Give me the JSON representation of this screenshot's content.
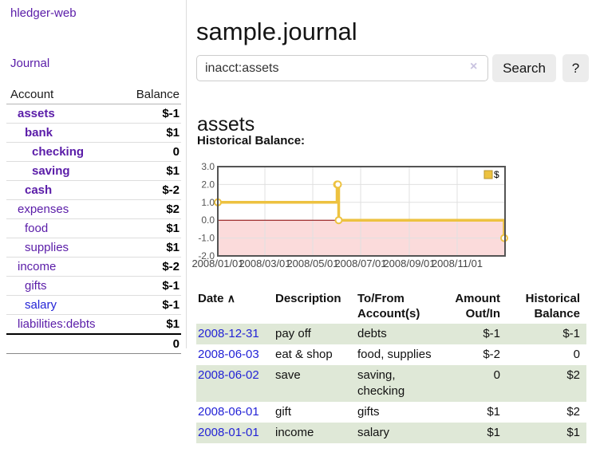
{
  "app": {
    "title": "hledger-web"
  },
  "sidebar": {
    "journal_link": "Journal",
    "table": {
      "account_header": "Account",
      "balance_header": "Balance",
      "rows": [
        {
          "label": "assets",
          "balance": "$-1",
          "depth": 1,
          "strong": true,
          "balance_class": "neg",
          "link_class": ""
        },
        {
          "label": "bank",
          "balance": "$1",
          "depth": 2,
          "strong": true,
          "balance_class": "",
          "link_class": ""
        },
        {
          "label": "checking",
          "balance": "0",
          "depth": 3,
          "strong": true,
          "balance_class": "",
          "link_class": ""
        },
        {
          "label": "saving",
          "balance": "$1",
          "depth": 3,
          "strong": true,
          "balance_class": "",
          "link_class": ""
        },
        {
          "label": "cash",
          "balance": "$-2",
          "depth": 2,
          "strong": true,
          "balance_class": "neg",
          "link_class": ""
        },
        {
          "label": "expenses",
          "balance": "$2",
          "depth": 1,
          "strong": false,
          "balance_class": "",
          "link_class": ""
        },
        {
          "label": "food",
          "balance": "$1",
          "depth": 2,
          "strong": false,
          "balance_class": "",
          "link_class": ""
        },
        {
          "label": "supplies",
          "balance": "$1",
          "depth": 2,
          "strong": false,
          "balance_class": "",
          "link_class": ""
        },
        {
          "label": "income",
          "balance": "$-2",
          "depth": 1,
          "strong": false,
          "balance_class": "negsoft",
          "link_class": ""
        },
        {
          "label": "gifts",
          "balance": "$-1",
          "depth": 2,
          "strong": false,
          "balance_class": "negsoft",
          "link_class": ""
        },
        {
          "label": "salary",
          "balance": "$-1",
          "depth": 2,
          "strong": false,
          "balance_class": "negsoft",
          "link_class": "blue"
        },
        {
          "label": "liabilities:debts",
          "balance": "$1",
          "depth": 1,
          "strong": false,
          "balance_class": "",
          "link_class": ""
        }
      ],
      "total": "0"
    }
  },
  "main": {
    "title": "sample.journal",
    "search": {
      "value": "inacct:assets",
      "clear_icon": "×",
      "button_label": "Search",
      "help_label": "?"
    },
    "account_heading": "assets",
    "chart_label": "Historical Balance:",
    "register": {
      "headers": {
        "date": "Date",
        "description": "Description",
        "accounts": "To/From\nAccount(s)",
        "amount": "Amount\nOut/In",
        "balance": "Historical\nBalance"
      },
      "sort_indicator": "∧",
      "rows": [
        {
          "date": "2008-12-31",
          "description": "pay off",
          "accounts": "debts",
          "amount": "$-1",
          "amount_neg": true,
          "balance": "$-1",
          "balance_neg": true
        },
        {
          "date": "2008-06-03",
          "description": "eat & shop",
          "accounts": "food, supplies",
          "amount": "$-2",
          "amount_neg": true,
          "balance": "0",
          "balance_neg": false
        },
        {
          "date": "2008-06-02",
          "description": "save",
          "accounts": "saving,\nchecking",
          "amount": "0",
          "amount_neg": false,
          "balance": "$2",
          "balance_neg": false
        },
        {
          "date": "2008-06-01",
          "description": "gift",
          "accounts": "gifts",
          "amount": "$1",
          "amount_neg": false,
          "balance": "$2",
          "balance_neg": false
        },
        {
          "date": "2008-01-01",
          "description": "income",
          "accounts": "salary",
          "amount": "$1",
          "amount_neg": false,
          "balance": "$1",
          "balance_neg": false
        }
      ]
    }
  },
  "chart_data": {
    "type": "line",
    "title": "Historical Balance",
    "legend": "$",
    "legend_position": "top-right",
    "grid": true,
    "steps": true,
    "ylim": [
      -2,
      3
    ],
    "yticks": [
      3,
      2,
      1,
      0,
      -1,
      -2
    ],
    "xticks": [
      "2008-01-01",
      "2008-03-01",
      "2008-05-01",
      "2008-07-01",
      "2008-09-01",
      "2008-11-01"
    ],
    "xtick_labels": [
      "2008/01/01",
      "2008/03/01",
      "2008/05/01",
      "2008/07/01",
      "2008/09/01",
      "2008/11/01"
    ],
    "xmax": "2009-01-01",
    "series": [
      {
        "name": "$",
        "color": "#edc240",
        "points": [
          {
            "x": "2008-01-01",
            "y": 1
          },
          {
            "x": "2008-06-01",
            "y": 2
          },
          {
            "x": "2008-06-02",
            "y": 2
          },
          {
            "x": "2008-06-03",
            "y": 0
          },
          {
            "x": "2008-12-31",
            "y": -1
          }
        ]
      }
    ],
    "colors": {
      "negative_region": "#fbdbdb",
      "zero_line": "#8b0000",
      "gridline": "#e0e0e0",
      "border": "#545454",
      "tick_label": "#545454"
    }
  }
}
